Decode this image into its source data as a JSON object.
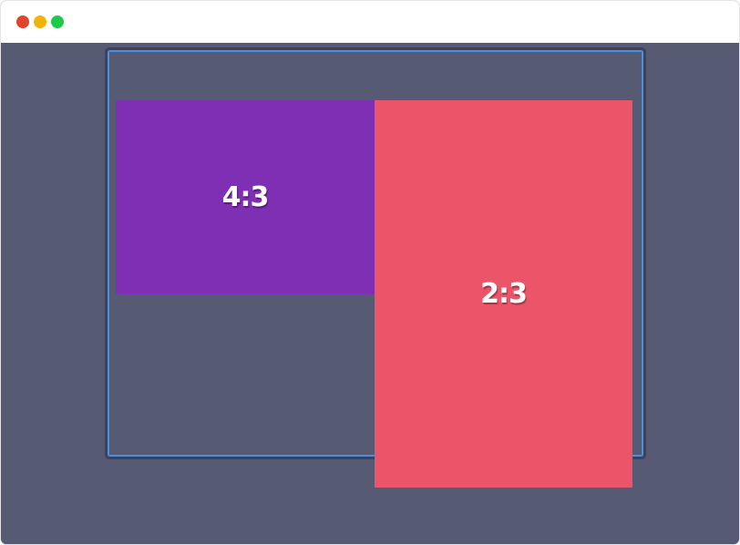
{
  "window": {
    "controls": [
      "close",
      "minimize",
      "maximize"
    ],
    "colors": {
      "close": "#e0442b",
      "minimize": "#f2b400",
      "maximize": "#1ccb46",
      "background": "#575a73",
      "outline": "#4a90e2"
    }
  },
  "boxes": [
    {
      "label": "4:3",
      "color": "#7f2fb4"
    },
    {
      "label": "2:3",
      "color": "#ec5569"
    }
  ]
}
